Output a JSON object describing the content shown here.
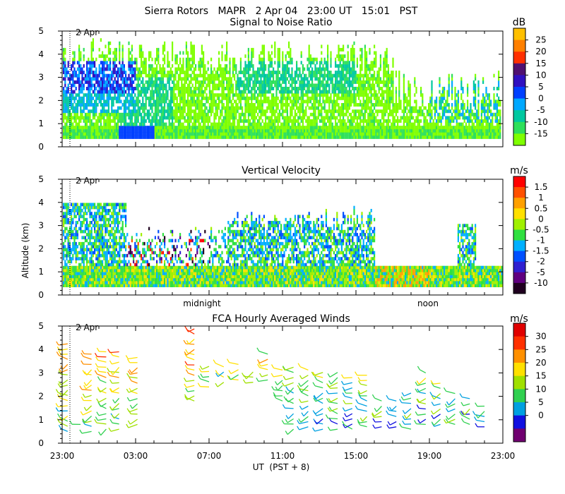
{
  "header": {
    "line1": "Sierra Rotors   MAPR   2 Apr 04   23:00 UT   15:01   PST"
  },
  "panels": [
    {
      "id": "snr",
      "title": "Signal to Noise Ratio",
      "date_marker": "2 Apr",
      "colorbar": {
        "unit": "dB",
        "labels": [
          "25",
          "20",
          "15",
          "10",
          "5",
          "0",
          "-5",
          "-10",
          "-15"
        ]
      }
    },
    {
      "id": "vv",
      "title": "Vertical Velocity",
      "date_marker": "2 Apr",
      "colorbar": {
        "unit": "m/s",
        "labels": [
          "1.5",
          "1",
          "0.5",
          "0",
          "-0.5",
          "-1",
          "-1.5",
          "-2",
          "-5",
          "-10"
        ]
      }
    },
    {
      "id": "wind",
      "title": "FCA Hourly Averaged Winds",
      "date_marker": "2 Apr",
      "colorbar": {
        "unit": "m/s",
        "labels": [
          "30",
          "25",
          "20",
          "15",
          "10",
          "5",
          "0"
        ]
      }
    }
  ],
  "time_markers": {
    "midnight": "midnight",
    "noon": "noon"
  },
  "x_axis_label": "UT  (PST + 8)",
  "y_axis_label": "Altitude (km)",
  "colors": {
    "snr": [
      "#7fff00",
      "#2ee05a",
      "#00c8a0",
      "#00a8ff",
      "#0040ff",
      "#3010c0",
      "#501070",
      "#ff3000",
      "#ff8000",
      "#ffc000"
    ],
    "vv": [
      "#200020",
      "#600080",
      "#3020d0",
      "#0050ff",
      "#00b0ff",
      "#30e040",
      "#a0f000",
      "#ffe000",
      "#ffa000",
      "#ff5000",
      "#ff0000"
    ],
    "wind": [
      "#700070",
      "#1010e0",
      "#00a0e0",
      "#30d050",
      "#a0e000",
      "#ffe000",
      "#ff9000",
      "#ff3000",
      "#e00000"
    ]
  },
  "chart_data": [
    {
      "type": "heatmap",
      "title": "Signal to Noise Ratio",
      "ylabel": "Altitude (km)",
      "xlabel": "UT  (PST + 8)",
      "ylim": [
        0,
        5
      ],
      "yticks": [
        "0",
        "1",
        "2",
        "3",
        "4",
        "5"
      ],
      "xticks": [
        "23:00",
        "03:00",
        "07:00",
        "11:00",
        "15:00",
        "19:00",
        "23:00"
      ],
      "x_hours": [
        0,
        24
      ],
      "colorbar_unit": "dB",
      "colorbar_levels": [
        -15,
        -10,
        -5,
        0,
        5,
        10,
        15,
        20,
        25
      ],
      "annotation": "2 Apr"
    },
    {
      "type": "heatmap",
      "title": "Vertical Velocity",
      "ylabel": "Altitude (km)",
      "ylim": [
        0,
        5
      ],
      "yticks": [
        "0",
        "1",
        "2",
        "3",
        "4",
        "5"
      ],
      "xticks": [
        "23:00",
        "03:00",
        "07:00",
        "11:00",
        "15:00",
        "19:00",
        "23:00"
      ],
      "x_hours": [
        0,
        24
      ],
      "colorbar_unit": "m/s",
      "colorbar_levels": [
        -10,
        -5,
        -2,
        -1.5,
        -1,
        -0.5,
        0,
        0.5,
        1,
        1.5
      ],
      "annotation": "2 Apr",
      "markers": [
        "midnight",
        "noon"
      ]
    },
    {
      "type": "scatter",
      "title": "FCA Hourly Averaged Winds",
      "ylabel": "Altitude (km)",
      "xlabel": "UT  (PST + 8)",
      "ylim": [
        0,
        5
      ],
      "yticks": [
        "0",
        "1",
        "2",
        "3",
        "4",
        "5"
      ],
      "xticks": [
        "23:00",
        "03:00",
        "07:00",
        "11:00",
        "15:00",
        "19:00",
        "23:00"
      ],
      "x_hours": [
        0,
        24
      ],
      "colorbar_unit": "m/s",
      "colorbar_levels": [
        0,
        5,
        10,
        15,
        20,
        25,
        30
      ],
      "annotation": "2 Apr",
      "barb_columns": [
        {
          "hour": 0.3,
          "alt_min": 0.5,
          "alt_max": 4.3
        },
        {
          "hour": 1.0,
          "alt_min": 0.8,
          "alt_max": 1.0
        },
        {
          "hour": 1.6,
          "alt_min": 0.5,
          "alt_max": 4.0
        },
        {
          "hour": 2.4,
          "alt_min": 0.6,
          "alt_max": 4.1
        },
        {
          "hour": 3.1,
          "alt_min": 0.6,
          "alt_max": 3.9
        },
        {
          "hour": 4.1,
          "alt_min": 0.8,
          "alt_max": 3.7
        },
        {
          "hour": 7.2,
          "alt_min": 1.8,
          "alt_max": 4.9
        },
        {
          "hour": 8.0,
          "alt_min": 2.4,
          "alt_max": 3.4
        },
        {
          "hour": 8.8,
          "alt_min": 2.6,
          "alt_max": 3.3
        },
        {
          "hour": 9.6,
          "alt_min": 2.7,
          "alt_max": 3.4
        },
        {
          "hour": 10.4,
          "alt_min": 2.6,
          "alt_max": 3.2
        },
        {
          "hour": 11.2,
          "alt_min": 2.7,
          "alt_max": 3.8
        },
        {
          "hour": 12.0,
          "alt_min": 1.8,
          "alt_max": 3.3
        },
        {
          "hour": 12.6,
          "alt_min": 0.6,
          "alt_max": 3.4
        },
        {
          "hour": 13.4,
          "alt_min": 0.7,
          "alt_max": 3.3
        },
        {
          "hour": 14.2,
          "alt_min": 0.6,
          "alt_max": 3.2
        },
        {
          "hour": 15.0,
          "alt_min": 0.6,
          "alt_max": 3.1
        },
        {
          "hour": 15.8,
          "alt_min": 0.6,
          "alt_max": 3.0
        },
        {
          "hour": 16.6,
          "alt_min": 0.7,
          "alt_max": 2.9
        },
        {
          "hour": 17.4,
          "alt_min": 0.7,
          "alt_max": 2.0
        },
        {
          "hour": 18.2,
          "alt_min": 0.7,
          "alt_max": 2.0
        },
        {
          "hour": 19.0,
          "alt_min": 0.6,
          "alt_max": 2.2
        },
        {
          "hour": 19.8,
          "alt_min": 0.8,
          "alt_max": 3.2
        },
        {
          "hour": 20.6,
          "alt_min": 0.8,
          "alt_max": 2.6
        },
        {
          "hour": 21.4,
          "alt_min": 0.8,
          "alt_max": 2.2
        },
        {
          "hour": 22.2,
          "alt_min": 0.8,
          "alt_max": 1.9
        },
        {
          "hour": 23.0,
          "alt_min": 0.7,
          "alt_max": 1.7
        }
      ]
    }
  ]
}
